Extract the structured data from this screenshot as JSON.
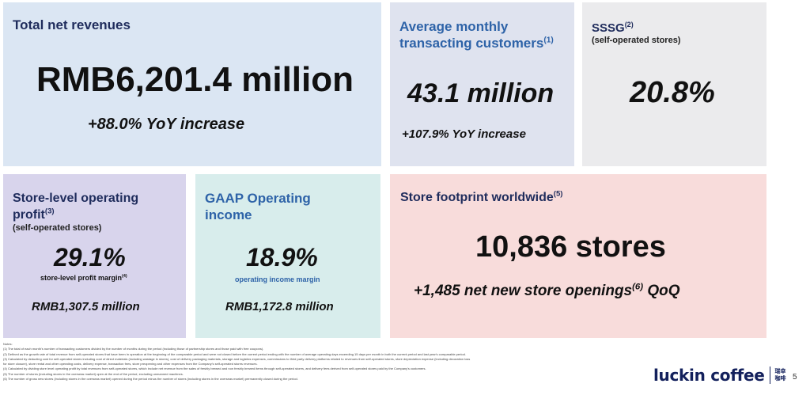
{
  "revenue": {
    "title": "Total net revenues",
    "value": "RMB6,201.4 million",
    "yoy": "+88.0% YoY increase"
  },
  "customers": {
    "title_line1": "Average monthly",
    "title_line2": "transacting customers",
    "note_mark": "(1)",
    "value": "43.1 million",
    "yoy": "+107.9% YoY increase"
  },
  "sssg": {
    "title": "SSSG",
    "note_mark": "(2)",
    "subtitle": "(self-operated stores)",
    "value": "20.8%"
  },
  "store_profit": {
    "title_line1": "Store-level operating",
    "title_line2": "profit",
    "note_mark": "(3)",
    "subtitle": "(self-operated stores)",
    "value": "29.1%",
    "margin_label": "store-level profit margin",
    "margin_mark": "(4)",
    "amount": "RMB1,307.5 million"
  },
  "gaap": {
    "title_line1": "GAAP Operating",
    "title_line2": "income",
    "value": "18.9%",
    "margin_label": "operating income margin",
    "amount": "RMB1,172.8 million"
  },
  "footprint": {
    "title": "Store footprint worldwide",
    "note_mark": "(5)",
    "value": "10,836 stores",
    "openings_prefix": "+1,485 net new store openings",
    "openings_mark": "(6)",
    "openings_suffix": " QoQ"
  },
  "notes": {
    "heading": "Notes:",
    "lines": [
      "(1) The total of each month's number of transacting customers divided by the number of months during the period (including those of partnership stores and those paid with free coupons).",
      "(2) Defined as the growth rate of total revenue from self-operated stores that have been in operation at the beginning of the comparable period and were not closed before the current period ending with the number of average operating days exceeding 15 days per month in both the current period and last year's comparable period.",
      "(3) Calculated by deducting cost for self-operated stores including cost of direct materials (including wastage in stores), cost of delivery packaging materials, storage and logistics expenses, commissions to third party delivery platforms related to revenues from self-operated stores, store depreciation expense (including decoration loss",
      "for store closure), store rental and other operating costs, delivery expense, transaction fees, store preopening and other expenses from the Company's self-operated stores revenues.",
      "(4) Calculated by dividing store level operating profit by total revenues from self-operated stores, which include net revenue from the sales of freshly brewed and non freshly brewed items through self-operated stores, and delivery fees derived from self-operated stores paid by the Company's customers.",
      "(5) The number of stores (including stores in the overseas market) open at the end of the period, excluding unmanned machines.",
      "(6) The number of gross new stores (including stores in the overseas market) opened during the period minus the number of stores (including stores in the overseas market) permanently closed during the period."
    ]
  },
  "brand": {
    "name": "luckin coffee",
    "cn_line1": "瑞幸",
    "cn_line2": "咖啡"
  },
  "page_number": "5"
}
